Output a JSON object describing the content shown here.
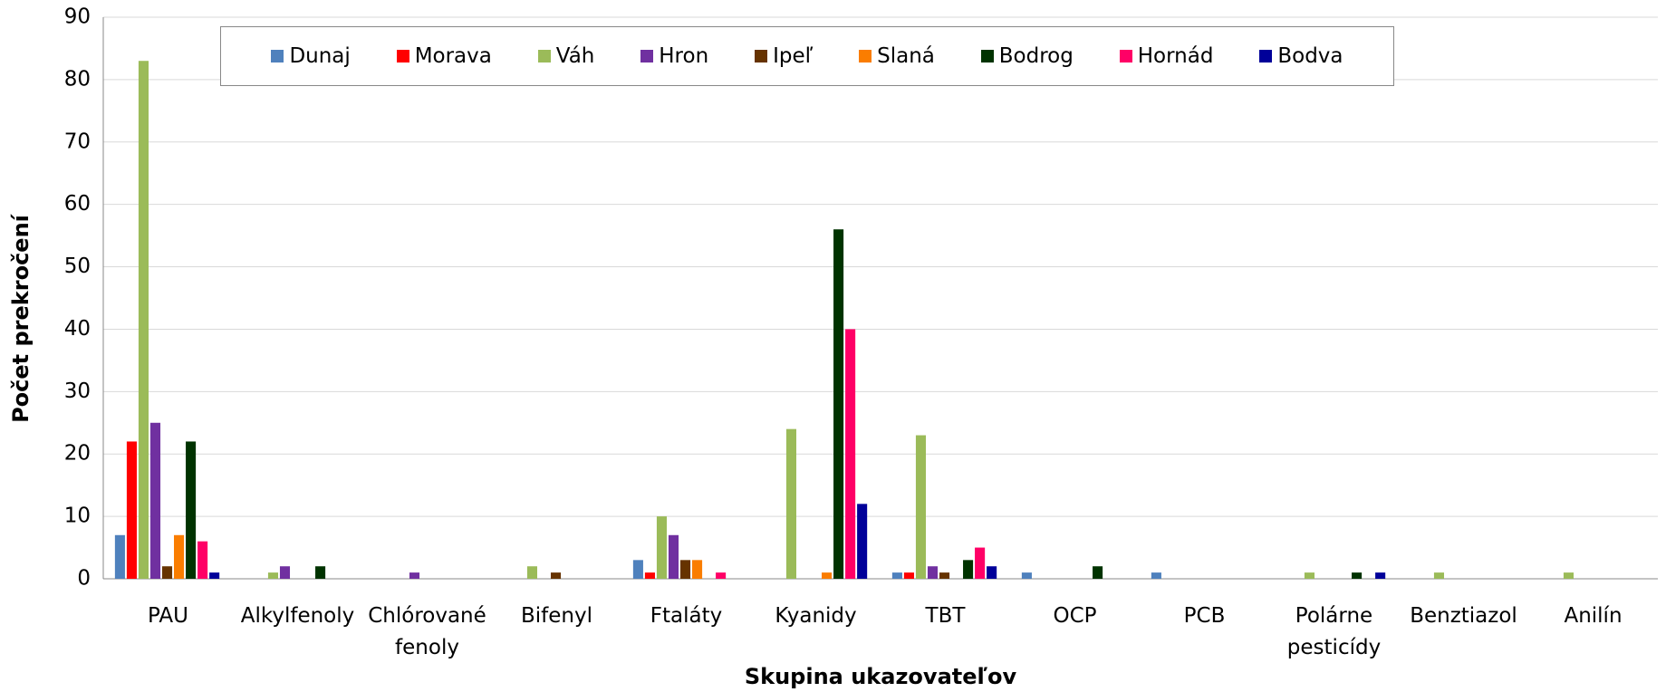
{
  "chart_data": {
    "type": "bar",
    "xlabel": "Skupina ukazovateľov",
    "ylabel": "Počet prekročení",
    "categories": [
      "PAU",
      "Alkylfenoly",
      "Chlórované fenoly",
      "Bifenyl",
      "Ftaláty",
      "Kyanidy",
      "TBT",
      "OCP",
      "PCB",
      "Polárne pesticídy",
      "Benztiazol",
      "Anilín"
    ],
    "series": [
      {
        "name": "Dunaj",
        "color": "#4f81bd",
        "values": [
          7,
          0,
          0,
          0,
          3,
          0,
          1,
          1,
          1,
          0,
          0,
          0
        ]
      },
      {
        "name": "Morava",
        "color": "#ff0000",
        "values": [
          22,
          0,
          0,
          0,
          1,
          0,
          1,
          0,
          0,
          0,
          0,
          0
        ]
      },
      {
        "name": "Váh",
        "color": "#9bbb59",
        "values": [
          83,
          1,
          0,
          2,
          10,
          24,
          23,
          0,
          0,
          1,
          1,
          1
        ]
      },
      {
        "name": "Hron",
        "color": "#7030a0",
        "values": [
          25,
          2,
          1,
          0,
          7,
          0,
          2,
          0,
          0,
          0,
          0,
          0
        ]
      },
      {
        "name": "Ipeľ",
        "color": "#663300",
        "values": [
          2,
          0,
          0,
          1,
          3,
          0,
          1,
          0,
          0,
          0,
          0,
          0
        ]
      },
      {
        "name": "Slaná",
        "color": "#fa7d00",
        "values": [
          7,
          0,
          0,
          0,
          3,
          1,
          0,
          0,
          0,
          0,
          0,
          0
        ]
      },
      {
        "name": "Bodrog",
        "color": "#003300",
        "values": [
          22,
          2,
          0,
          0,
          0,
          56,
          3,
          2,
          0,
          1,
          0,
          0
        ]
      },
      {
        "name": "Hornád",
        "color": "#ff0066",
        "values": [
          6,
          0,
          0,
          0,
          1,
          40,
          5,
          0,
          0,
          0,
          0,
          0
        ]
      },
      {
        "name": "Bodva",
        "color": "#000099",
        "values": [
          1,
          0,
          0,
          0,
          0,
          12,
          2,
          0,
          0,
          1,
          0,
          0
        ]
      }
    ],
    "ylim": [
      0,
      90
    ],
    "yticks": [
      0,
      10,
      20,
      30,
      40,
      50,
      60,
      70,
      80,
      90
    ],
    "grid": true,
    "legend": "top"
  }
}
